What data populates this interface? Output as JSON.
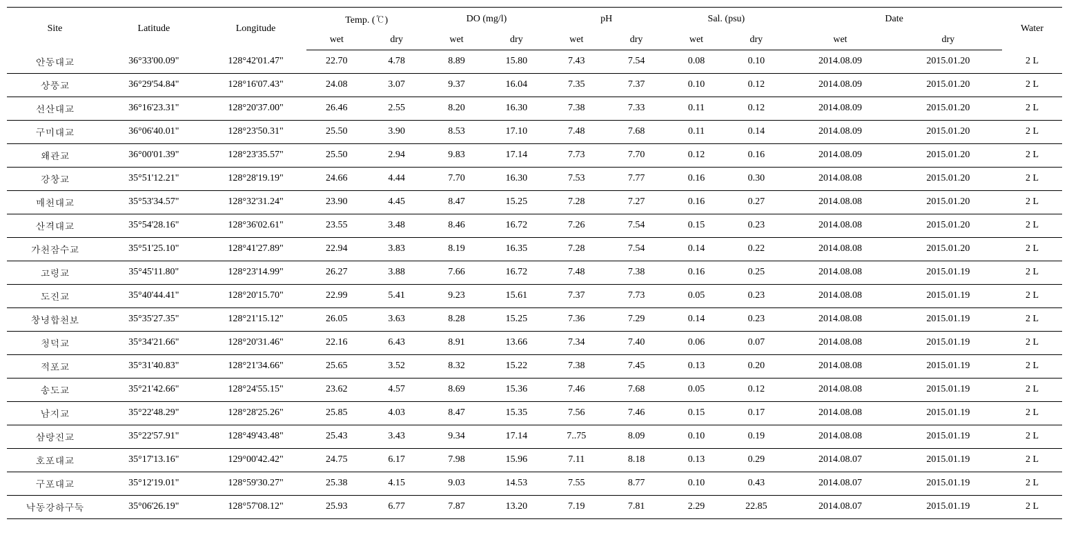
{
  "table": {
    "headers": {
      "site": "Site",
      "latitude": "Latitude",
      "longitude": "Longitude",
      "temp": "Temp. (℃)",
      "do": "DO (mg/l)",
      "ph": "pH",
      "sal": "Sal. (psu)",
      "date": "Date",
      "water": "Water",
      "wet": "wet",
      "dry": "dry"
    },
    "rows": [
      {
        "site": "안동대교",
        "lat": "36°33'00.09\"",
        "lon": "128°42'01.47\"",
        "temp_wet": "22.70",
        "temp_dry": "4.78",
        "do_wet": "8.89",
        "do_dry": "15.80",
        "ph_wet": "7.43",
        "ph_dry": "7.54",
        "sal_wet": "0.08",
        "sal_dry": "0.10",
        "date_wet": "2014.08.09",
        "date_dry": "2015.01.20",
        "water": "2 L"
      },
      {
        "site": "상풍교",
        "lat": "36°29'54.84\"",
        "lon": "128°16'07.43\"",
        "temp_wet": "24.08",
        "temp_dry": "3.07",
        "do_wet": "9.37",
        "do_dry": "16.04",
        "ph_wet": "7.35",
        "ph_dry": "7.37",
        "sal_wet": "0.10",
        "sal_dry": "0.12",
        "date_wet": "2014.08.09",
        "date_dry": "2015.01.20",
        "water": "2 L"
      },
      {
        "site": "선산대교",
        "lat": "36°16'23.31\"",
        "lon": "128°20'37.00\"",
        "temp_wet": "26.46",
        "temp_dry": "2.55",
        "do_wet": "8.20",
        "do_dry": "16.30",
        "ph_wet": "7.38",
        "ph_dry": "7.33",
        "sal_wet": "0.11",
        "sal_dry": "0.12",
        "date_wet": "2014.08.09",
        "date_dry": "2015.01.20",
        "water": "2 L"
      },
      {
        "site": "구미대교",
        "lat": "36°06'40.01\"",
        "lon": "128°23'50.31\"",
        "temp_wet": "25.50",
        "temp_dry": "3.90",
        "do_wet": "8.53",
        "do_dry": "17.10",
        "ph_wet": "7.48",
        "ph_dry": "7.68",
        "sal_wet": "0.11",
        "sal_dry": "0.14",
        "date_wet": "2014.08.09",
        "date_dry": "2015.01.20",
        "water": "2 L"
      },
      {
        "site": "왜관교",
        "lat": "36°00'01.39\"",
        "lon": "128°23'35.57\"",
        "temp_wet": "25.50",
        "temp_dry": "2.94",
        "do_wet": "9.83",
        "do_dry": "17.14",
        "ph_wet": "7.73",
        "ph_dry": "7.70",
        "sal_wet": "0.12",
        "sal_dry": "0.16",
        "date_wet": "2014.08.09",
        "date_dry": "2015.01.20",
        "water": "2 L"
      },
      {
        "site": "강창교",
        "lat": "35°51'12.21\"",
        "lon": "128°28'19.19\"",
        "temp_wet": "24.66",
        "temp_dry": "4.44",
        "do_wet": "7.70",
        "do_dry": "16.30",
        "ph_wet": "7.53",
        "ph_dry": "7.77",
        "sal_wet": "0.16",
        "sal_dry": "0.30",
        "date_wet": "2014.08.08",
        "date_dry": "2015.01.20",
        "water": "2 L"
      },
      {
        "site": "매천대교",
        "lat": "35°53'34.57\"",
        "lon": "128°32'31.24\"",
        "temp_wet": "23.90",
        "temp_dry": "4.45",
        "do_wet": "8.47",
        "do_dry": "15.25",
        "ph_wet": "7.28",
        "ph_dry": "7.27",
        "sal_wet": "0.16",
        "sal_dry": "0.27",
        "date_wet": "2014.08.08",
        "date_dry": "2015.01.20",
        "water": "2 L"
      },
      {
        "site": "산격대교",
        "lat": "35°54'28.16\"",
        "lon": "128°36'02.61\"",
        "temp_wet": "23.55",
        "temp_dry": "3.48",
        "do_wet": "8.46",
        "do_dry": "16.72",
        "ph_wet": "7.26",
        "ph_dry": "7.54",
        "sal_wet": "0.15",
        "sal_dry": "0.23",
        "date_wet": "2014.08.08",
        "date_dry": "2015.01.20",
        "water": "2 L"
      },
      {
        "site": "가천잠수교",
        "lat": "35°51'25.10\"",
        "lon": "128°41'27.89\"",
        "temp_wet": "22.94",
        "temp_dry": "3.83",
        "do_wet": "8.19",
        "do_dry": "16.35",
        "ph_wet": "7.28",
        "ph_dry": "7.54",
        "sal_wet": "0.14",
        "sal_dry": "0.22",
        "date_wet": "2014.08.08",
        "date_dry": "2015.01.20",
        "water": "2 L"
      },
      {
        "site": "고령교",
        "lat": "35°45'11.80\"",
        "lon": "128°23'14.99\"",
        "temp_wet": "26.27",
        "temp_dry": "3.88",
        "do_wet": "7.66",
        "do_dry": "16.72",
        "ph_wet": "7.48",
        "ph_dry": "7.38",
        "sal_wet": "0.16",
        "sal_dry": "0.25",
        "date_wet": "2014.08.08",
        "date_dry": "2015.01.19",
        "water": "2 L"
      },
      {
        "site": "도진교",
        "lat": "35°40'44.41\"",
        "lon": "128°20'15.70\"",
        "temp_wet": "22.99",
        "temp_dry": "5.41",
        "do_wet": "9.23",
        "do_dry": "15.61",
        "ph_wet": "7.37",
        "ph_dry": "7.73",
        "sal_wet": "0.05",
        "sal_dry": "0.23",
        "date_wet": "2014.08.08",
        "date_dry": "2015.01.19",
        "water": "2 L"
      },
      {
        "site": "창녕합천보",
        "lat": "35°35'27.35\"",
        "lon": "128°21'15.12\"",
        "temp_wet": "26.05",
        "temp_dry": "3.63",
        "do_wet": "8.28",
        "do_dry": "15.25",
        "ph_wet": "7.36",
        "ph_dry": "7.29",
        "sal_wet": "0.14",
        "sal_dry": "0.23",
        "date_wet": "2014.08.08",
        "date_dry": "2015.01.19",
        "water": "2 L"
      },
      {
        "site": "청덕교",
        "lat": "35°34'21.66\"",
        "lon": "128°20'31.46\"",
        "temp_wet": "22.16",
        "temp_dry": "6.43",
        "do_wet": "8.91",
        "do_dry": "13.66",
        "ph_wet": "7.34",
        "ph_dry": "7.40",
        "sal_wet": "0.06",
        "sal_dry": "0.07",
        "date_wet": "2014.08.08",
        "date_dry": "2015.01.19",
        "water": "2 L"
      },
      {
        "site": "적포교",
        "lat": "35°31'40.83\"",
        "lon": "128°21'34.66\"",
        "temp_wet": "25.65",
        "temp_dry": "3.52",
        "do_wet": "8.32",
        "do_dry": "15.22",
        "ph_wet": "7.38",
        "ph_dry": "7.45",
        "sal_wet": "0.13",
        "sal_dry": "0.20",
        "date_wet": "2014.08.08",
        "date_dry": "2015.01.19",
        "water": "2 L"
      },
      {
        "site": "송도교",
        "lat": "35°21'42.66\"",
        "lon": "128°24'55.15\"",
        "temp_wet": "23.62",
        "temp_dry": "4.57",
        "do_wet": "8.69",
        "do_dry": "15.36",
        "ph_wet": "7.46",
        "ph_dry": "7.68",
        "sal_wet": "0.05",
        "sal_dry": "0.12",
        "date_wet": "2014.08.08",
        "date_dry": "2015.01.19",
        "water": "2 L"
      },
      {
        "site": "남지교",
        "lat": "35°22'48.29\"",
        "lon": "128°28'25.26\"",
        "temp_wet": "25.85",
        "temp_dry": "4.03",
        "do_wet": "8.47",
        "do_dry": "15.35",
        "ph_wet": "7.56",
        "ph_dry": "7.46",
        "sal_wet": "0.15",
        "sal_dry": "0.17",
        "date_wet": "2014.08.08",
        "date_dry": "2015.01.19",
        "water": "2 L"
      },
      {
        "site": "삼랑진교",
        "lat": "35°22'57.91\"",
        "lon": "128°49'43.48\"",
        "temp_wet": "25.43",
        "temp_dry": "3.43",
        "do_wet": "9.34",
        "do_dry": "17.14",
        "ph_wet": "7..75",
        "ph_dry": "8.09",
        "sal_wet": "0.10",
        "sal_dry": "0.19",
        "date_wet": "2014.08.08",
        "date_dry": "2015.01.19",
        "water": "2 L"
      },
      {
        "site": "호포대교",
        "lat": "35°17'13.16\"",
        "lon": "129°00'42.42\"",
        "temp_wet": "24.75",
        "temp_dry": "6.17",
        "do_wet": "7.98",
        "do_dry": "15.96",
        "ph_wet": "7.11",
        "ph_dry": "8.18",
        "sal_wet": "0.13",
        "sal_dry": "0.29",
        "date_wet": "2014.08.07",
        "date_dry": "2015.01.19",
        "water": "2 L"
      },
      {
        "site": "구포대교",
        "lat": "35°12'19.01\"",
        "lon": "128°59'30.27\"",
        "temp_wet": "25.38",
        "temp_dry": "4.15",
        "do_wet": "9.03",
        "do_dry": "14.53",
        "ph_wet": "7.55",
        "ph_dry": "8.77",
        "sal_wet": "0.10",
        "sal_dry": "0.43",
        "date_wet": "2014.08.07",
        "date_dry": "2015.01.19",
        "water": "2 L"
      },
      {
        "site": "낙동강하구둑",
        "lat": "35°06'26.19\"",
        "lon": "128°57'08.12\"",
        "temp_wet": "25.93",
        "temp_dry": "6.77",
        "do_wet": "7.87",
        "do_dry": "13.20",
        "ph_wet": "7.19",
        "ph_dry": "7.81",
        "sal_wet": "2.29",
        "sal_dry": "22.85",
        "date_wet": "2014.08.07",
        "date_dry": "2015.01.19",
        "water": "2 L"
      }
    ]
  }
}
